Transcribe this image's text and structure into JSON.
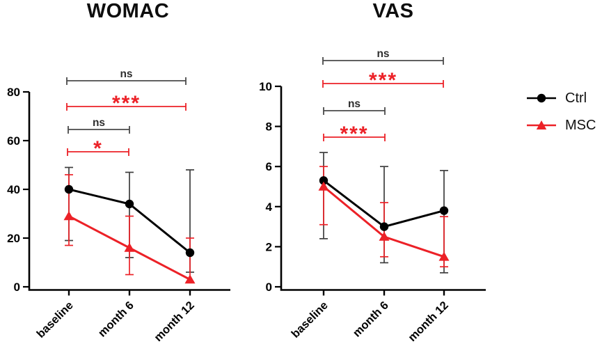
{
  "legend": {
    "items": [
      {
        "label": "Ctrl",
        "color": "#000000",
        "marker": "circle"
      },
      {
        "label": "MSC",
        "color": "#ec2127",
        "marker": "triangle"
      }
    ],
    "position": "right"
  },
  "chart_data": [
    {
      "type": "line",
      "title": "WOMAC",
      "categories": [
        "baseline",
        "month 6",
        "month 12"
      ],
      "ylim": [
        0,
        80
      ],
      "yticks": [
        0,
        20,
        40,
        60,
        80
      ],
      "grid": false,
      "series": [
        {
          "name": "Ctrl",
          "color": "#000000",
          "marker": "circle",
          "values": [
            40,
            34,
            14
          ],
          "err_low": [
            19,
            12,
            6
          ],
          "err_high": [
            49,
            47,
            48
          ]
        },
        {
          "name": "MSC",
          "color": "#ec2127",
          "marker": "triangle",
          "values": [
            29,
            16,
            3
          ],
          "err_low": [
            17,
            5,
            2
          ],
          "err_high": [
            46,
            29,
            20
          ]
        }
      ],
      "significance": [
        {
          "label": "ns",
          "series": "Ctrl",
          "from": 0,
          "to": 2
        },
        {
          "label": "***",
          "series": "MSC",
          "from": 0,
          "to": 2
        },
        {
          "label": "ns",
          "series": "Ctrl",
          "from": 0,
          "to": 1
        },
        {
          "label": "*",
          "series": "MSC",
          "from": 0,
          "to": 1
        }
      ]
    },
    {
      "type": "line",
      "title": "VAS",
      "categories": [
        "baseline",
        "month 6",
        "month 12"
      ],
      "ylim": [
        0,
        10
      ],
      "yticks": [
        0,
        2,
        4,
        6,
        8,
        10
      ],
      "grid": false,
      "series": [
        {
          "name": "Ctrl",
          "color": "#000000",
          "marker": "circle",
          "values": [
            5.3,
            3.0,
            3.8
          ],
          "err_low": [
            2.4,
            1.2,
            0.7
          ],
          "err_high": [
            6.7,
            6.0,
            5.8
          ]
        },
        {
          "name": "MSC",
          "color": "#ec2127",
          "marker": "triangle",
          "values": [
            5.0,
            2.5,
            1.5
          ],
          "err_low": [
            3.1,
            1.5,
            1.0
          ],
          "err_high": [
            6.0,
            4.2,
            3.5
          ]
        }
      ],
      "significance": [
        {
          "label": "ns",
          "series": "Ctrl",
          "from": 0,
          "to": 2
        },
        {
          "label": "***",
          "series": "MSC",
          "from": 0,
          "to": 2
        },
        {
          "label": "ns",
          "series": "Ctrl",
          "from": 0,
          "to": 1
        },
        {
          "label": "***",
          "series": "MSC",
          "from": 0,
          "to": 1
        }
      ]
    }
  ]
}
